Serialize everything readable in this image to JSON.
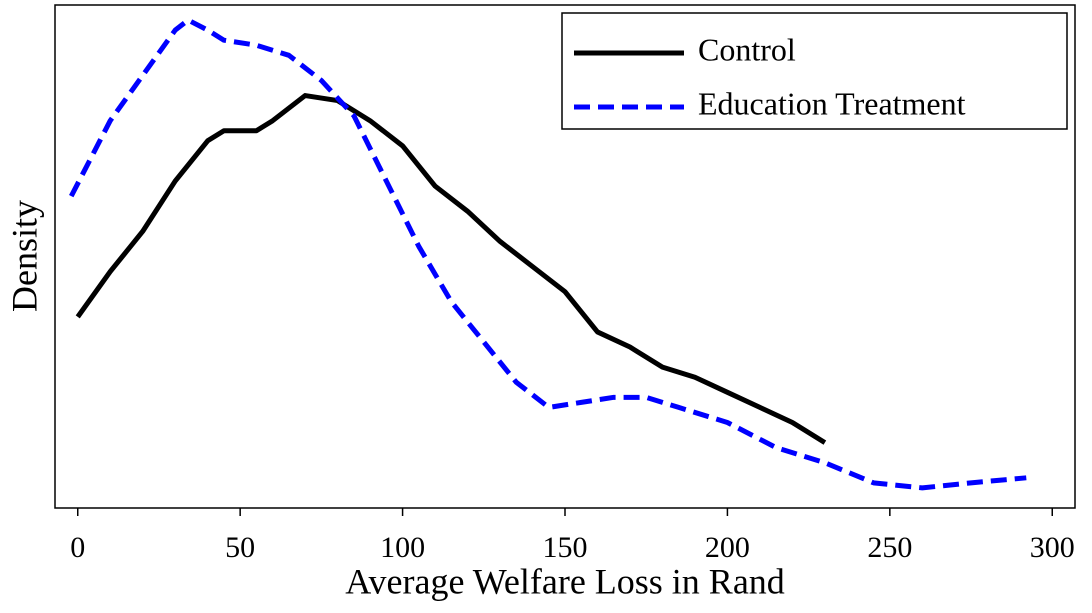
{
  "chart_data": {
    "type": "line",
    "x_label": "Average Welfare Loss in Rand",
    "y_label": "Density",
    "xlim": [
      -7,
      307
    ],
    "xticks": [
      0,
      50,
      100,
      150,
      200,
      250,
      300
    ],
    "ylim": [
      0,
      1
    ],
    "legend": "upper right",
    "series": [
      {
        "name": "Control",
        "color": "#000000",
        "dash": "solid",
        "x": [
          0,
          10,
          20,
          30,
          40,
          45,
          55,
          60,
          70,
          80,
          90,
          100,
          110,
          120,
          130,
          140,
          150,
          160,
          170,
          180,
          190,
          200,
          210,
          220,
          230
        ],
        "values": [
          0.38,
          0.47,
          0.55,
          0.65,
          0.73,
          0.75,
          0.75,
          0.77,
          0.82,
          0.81,
          0.77,
          0.72,
          0.64,
          0.59,
          0.53,
          0.48,
          0.43,
          0.35,
          0.32,
          0.28,
          0.26,
          0.23,
          0.2,
          0.17,
          0.13
        ]
      },
      {
        "name": "Education Treatment",
        "color": "#0000ff",
        "dash": "dashed",
        "x": [
          -2,
          10,
          20,
          30,
          34,
          40,
          45,
          55,
          65,
          75,
          85,
          95,
          105,
          115,
          125,
          135,
          145,
          155,
          165,
          175,
          185,
          200,
          215,
          230,
          245,
          260,
          275,
          292
        ],
        "values": [
          0.62,
          0.77,
          0.86,
          0.95,
          0.97,
          0.95,
          0.93,
          0.92,
          0.9,
          0.85,
          0.78,
          0.65,
          0.52,
          0.41,
          0.33,
          0.25,
          0.2,
          0.21,
          0.22,
          0.22,
          0.2,
          0.17,
          0.12,
          0.09,
          0.05,
          0.04,
          0.05,
          0.06
        ]
      }
    ]
  }
}
